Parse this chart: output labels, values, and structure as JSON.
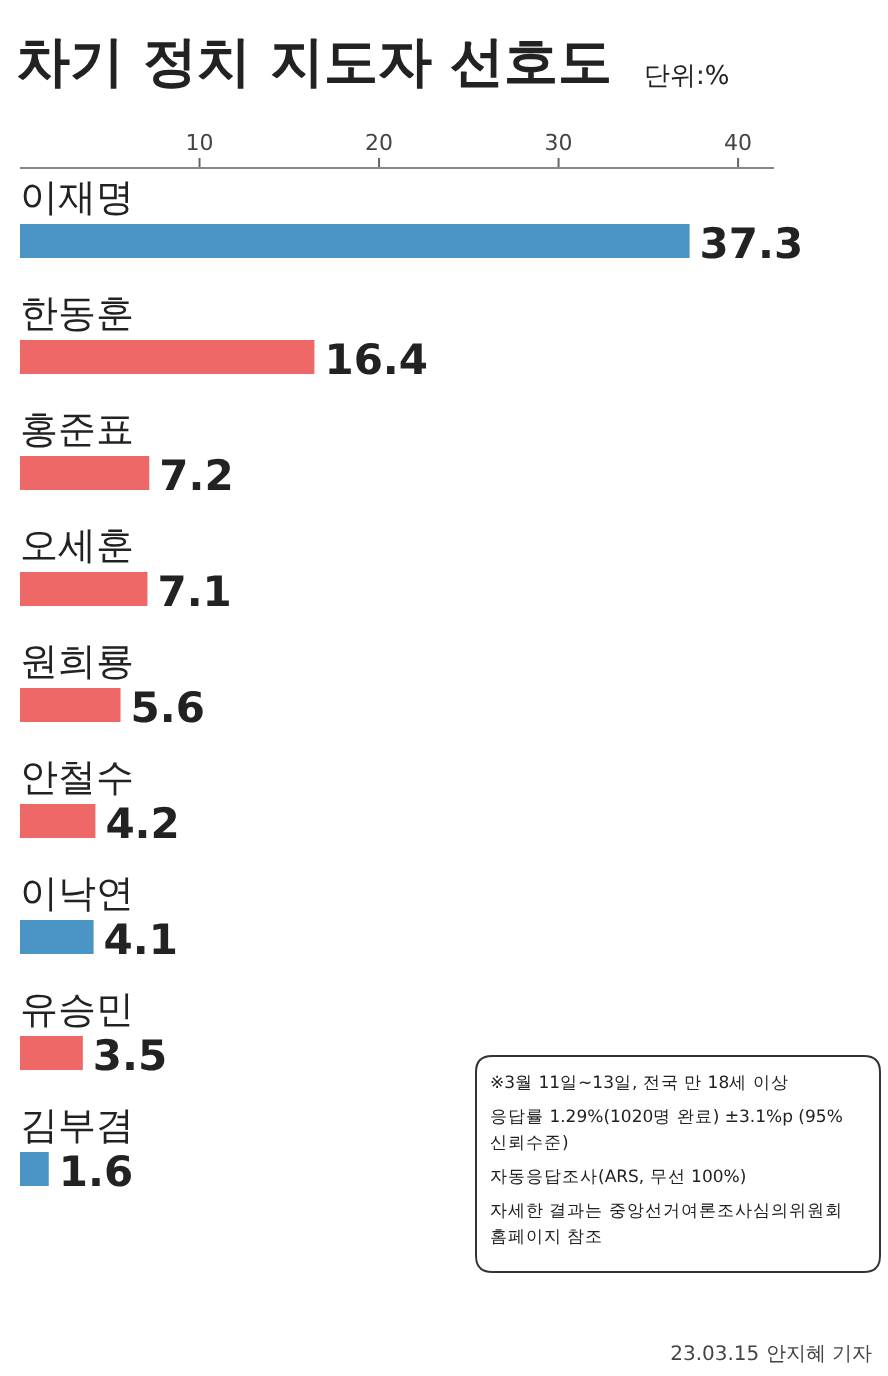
{
  "chart_data": {
    "type": "bar",
    "orientation": "horizontal",
    "title": "차기 정치 지도자 선호도",
    "subtitle": "단위:%",
    "categories": [
      "이재명",
      "한동훈",
      "홍준표",
      "오세훈",
      "원희룡",
      "안철수",
      "이낙연",
      "유승민",
      "김부겸"
    ],
    "values": [
      37.3,
      16.4,
      7.2,
      7.1,
      5.6,
      4.2,
      4.1,
      3.5,
      1.6
    ],
    "colors": [
      "#4a94c6",
      "#ee6868",
      "#ee6868",
      "#ee6868",
      "#ee6868",
      "#ee6868",
      "#4a94c6",
      "#ee6868",
      "#4a94c6"
    ],
    "xlim": [
      0,
      42
    ],
    "xticks": [
      10,
      20,
      30,
      40
    ],
    "data_labels": true,
    "annotations": [
      "※3월 11일~13일, 전국 만 18세 이상",
      "응답률 1.29%(1020명 완료) ±3.1%p (95% 신뢰수준)",
      "자동응답조사(ARS, 무선 100%)",
      "자세한 결과는 중앙선거여론조사심의위원회 홈페이지 참조",
      "23.03.15 안지혜 기자"
    ]
  }
}
